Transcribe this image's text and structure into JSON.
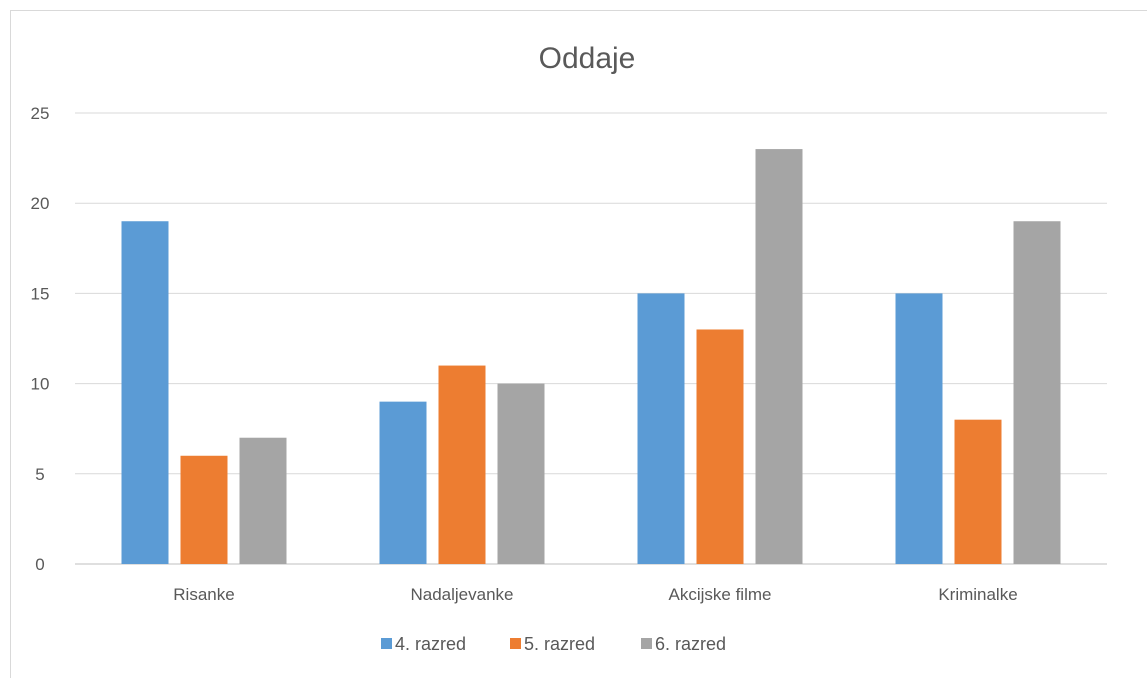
{
  "chart_data": {
    "type": "bar",
    "title": "Oddaje",
    "categories": [
      "Risanke",
      "Nadaljevanke",
      "Akcijske filme",
      "Kriminalke"
    ],
    "series": [
      {
        "name": "4. razred",
        "color": "#5b9bd5",
        "values": [
          19,
          9,
          15,
          15
        ]
      },
      {
        "name": "5. razred",
        "color": "#ed7d31",
        "values": [
          6,
          11,
          13,
          8
        ]
      },
      {
        "name": "6. razred",
        "color": "#a5a5a5",
        "values": [
          7,
          10,
          23,
          19
        ]
      }
    ],
    "ylim": [
      0,
      25
    ],
    "yticks": [
      0,
      5,
      10,
      15,
      20,
      25
    ],
    "grid": true,
    "legend": "bottom"
  }
}
